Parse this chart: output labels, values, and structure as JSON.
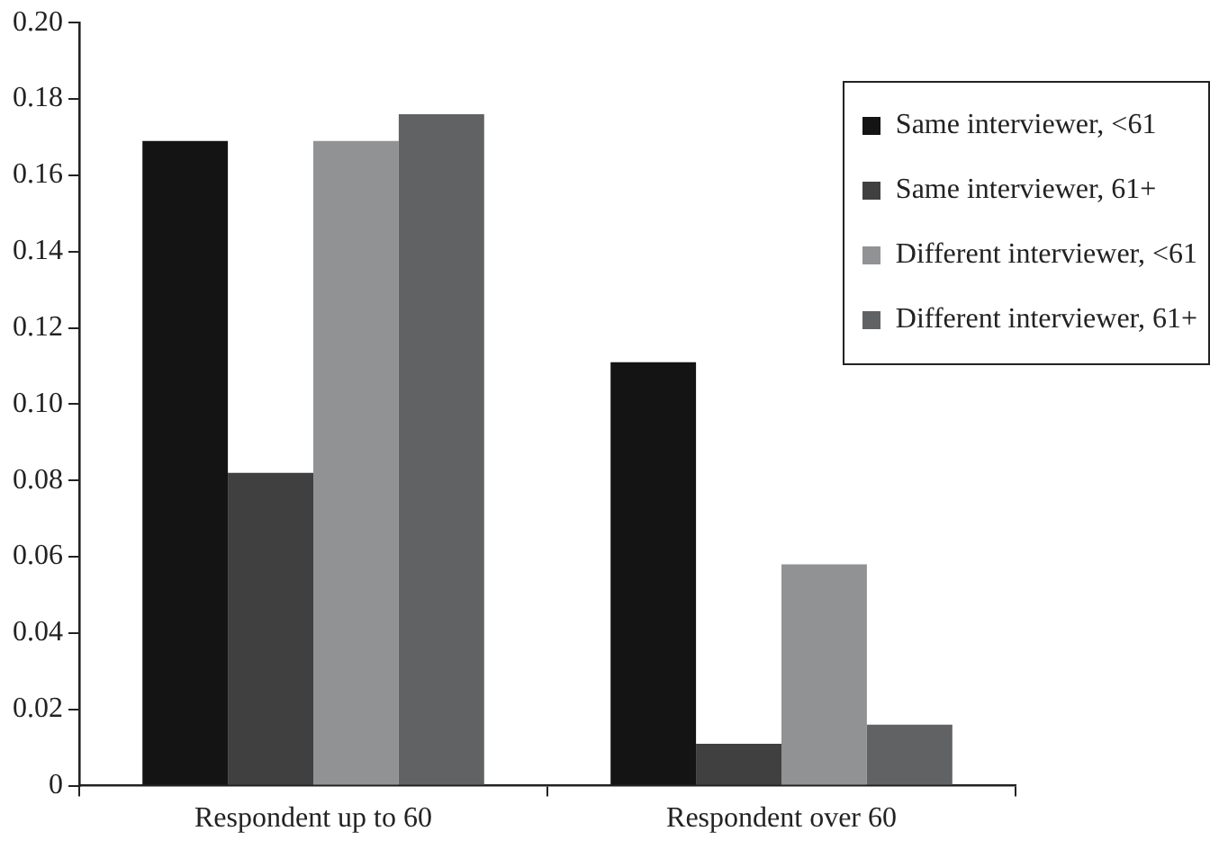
{
  "chart_data": {
    "type": "bar",
    "categories": [
      "Respondent up to 60",
      "Respondent over 60"
    ],
    "series": [
      {
        "name": "Same interviewer, <61",
        "color": "#141414",
        "values": [
          0.169,
          0.111
        ]
      },
      {
        "name": "Same interviewer, 61+",
        "color": "#404040",
        "values": [
          0.082,
          0.011
        ]
      },
      {
        "name": "Different interviewer, <61",
        "color": "#919294",
        "values": [
          0.169,
          0.058
        ]
      },
      {
        "name": "Different interviewer, 61+",
        "color": "#616264",
        "values": [
          0.176,
          0.016
        ]
      }
    ],
    "ylim": [
      0,
      0.2
    ],
    "yticks": [
      "0",
      0.02,
      0.04,
      0.06,
      0.08,
      "0.10",
      0.12,
      0.14,
      0.16,
      0.18,
      "0.20"
    ],
    "grid": false,
    "legend": "top right"
  }
}
